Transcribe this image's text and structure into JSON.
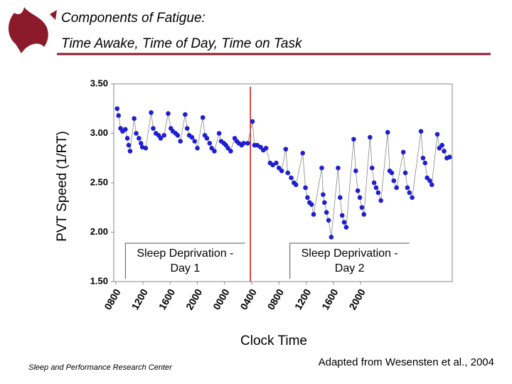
{
  "slide": {
    "title_lines": [
      "Components of Fatigue:",
      "Time Awake, Time of Day, Time on Task"
    ],
    "footer_left": "Sleep and Performance Research Center",
    "footer_right": "Adapted from Wesensten et al., 2004"
  },
  "chart_data": {
    "type": "scatter",
    "y_label": "PVT Speed (1/RT)",
    "x_label": "Clock Time",
    "xlim": [
      -0.3,
      49.5
    ],
    "ylim": [
      1.5,
      3.5
    ],
    "xticks": [
      {
        "value": 0,
        "label": "0800"
      },
      {
        "value": 4,
        "label": "1200"
      },
      {
        "value": 8,
        "label": "1600"
      },
      {
        "value": 12,
        "label": "2000"
      },
      {
        "value": 16,
        "label": "0000"
      },
      {
        "value": 20,
        "label": "0400"
      },
      {
        "value": 24,
        "label": "0800"
      },
      {
        "value": 28,
        "label": "1200"
      },
      {
        "value": 32,
        "label": "1600"
      },
      {
        "value": 36,
        "label": "2000"
      }
    ],
    "yticks": [
      {
        "value": 1.5,
        "label": "1.50"
      },
      {
        "value": 2.0,
        "label": "2.00"
      },
      {
        "value": 2.5,
        "label": "2.50"
      },
      {
        "value": 3.0,
        "label": "3.00"
      },
      {
        "value": 3.5,
        "label": "3.50"
      }
    ],
    "divider_x": 19.8,
    "divider_color": "#cc1111",
    "annotations": [
      {
        "lines": [
          "Sleep Deprivation -",
          "Day 1"
        ],
        "x": 10.2
      },
      {
        "lines": [
          "Sleep Deprivation -",
          "Day 2"
        ],
        "x": 34.4
      }
    ],
    "series": [
      {
        "color": "#1f1fd0",
        "line_color": "#777777",
        "x": [
          0.2,
          0.4,
          0.7,
          1.0,
          1.4,
          1.7,
          1.9,
          2.1,
          2.7,
          3.0,
          3.4,
          3.7,
          3.9,
          4.4,
          5.2,
          5.5,
          5.9,
          6.3,
          6.6,
          7.1,
          7.7,
          8.1,
          8.4,
          8.8,
          9.1,
          9.5,
          10.2,
          10.5,
          10.8,
          11.2,
          11.6,
          12.0,
          12.8,
          13.1,
          13.4,
          13.8,
          14.1,
          14.5,
          15.2,
          15.5,
          15.9,
          16.2,
          16.5,
          16.9,
          17.5,
          17.8,
          18.1,
          18.5,
          18.8,
          19.4,
          20.1,
          20.4,
          20.8,
          21.3,
          21.7,
          22.1,
          22.7,
          23.1,
          23.6,
          24.0,
          24.4,
          25.0,
          25.3,
          25.8,
          26.2,
          26.5,
          27.5,
          27.9,
          28.2,
          28.5,
          28.8,
          29.1,
          30.3,
          30.5,
          30.7,
          31.0,
          31.3,
          31.7,
          32.7,
          33.0,
          33.3,
          33.6,
          33.9,
          35.0,
          35.3,
          35.6,
          35.9,
          36.2,
          36.5,
          37.4,
          37.7,
          38.0,
          38.3,
          38.6,
          39.0,
          40.0,
          40.3,
          40.6,
          40.9,
          41.3,
          42.3,
          42.6,
          42.9,
          43.2,
          43.6,
          44.9,
          45.2,
          45.5,
          45.8,
          46.2,
          46.5,
          47.3,
          47.6,
          48.0,
          48.3,
          48.7,
          49.1
        ],
        "values": [
          3.25,
          3.18,
          3.05,
          3.02,
          3.04,
          2.95,
          2.88,
          2.82,
          3.15,
          3.0,
          2.95,
          2.9,
          2.86,
          2.85,
          3.21,
          3.05,
          3.0,
          2.98,
          2.95,
          2.98,
          3.2,
          3.05,
          3.02,
          3.0,
          2.98,
          2.92,
          3.19,
          3.05,
          2.98,
          2.96,
          2.92,
          2.85,
          3.16,
          2.98,
          2.95,
          2.9,
          2.85,
          2.82,
          3.0,
          2.92,
          2.9,
          2.88,
          2.85,
          2.82,
          2.95,
          2.92,
          2.9,
          2.88,
          2.9,
          2.9,
          3.12,
          2.88,
          2.88,
          2.86,
          2.83,
          2.85,
          2.7,
          2.68,
          2.7,
          2.65,
          2.62,
          2.84,
          2.6,
          2.55,
          2.5,
          2.48,
          2.8,
          2.45,
          2.35,
          2.3,
          2.28,
          2.18,
          2.65,
          2.38,
          2.3,
          2.2,
          2.12,
          1.95,
          2.65,
          2.35,
          2.17,
          2.1,
          2.05,
          2.94,
          2.62,
          2.42,
          2.35,
          2.25,
          2.18,
          2.96,
          2.65,
          2.5,
          2.45,
          2.4,
          2.32,
          3.01,
          2.62,
          2.6,
          2.52,
          2.45,
          2.81,
          2.6,
          2.45,
          2.4,
          2.35,
          3.02,
          2.75,
          2.7,
          2.55,
          2.52,
          2.48,
          2.99,
          2.85,
          2.88,
          2.82,
          2.75,
          2.76
        ]
      }
    ]
  }
}
